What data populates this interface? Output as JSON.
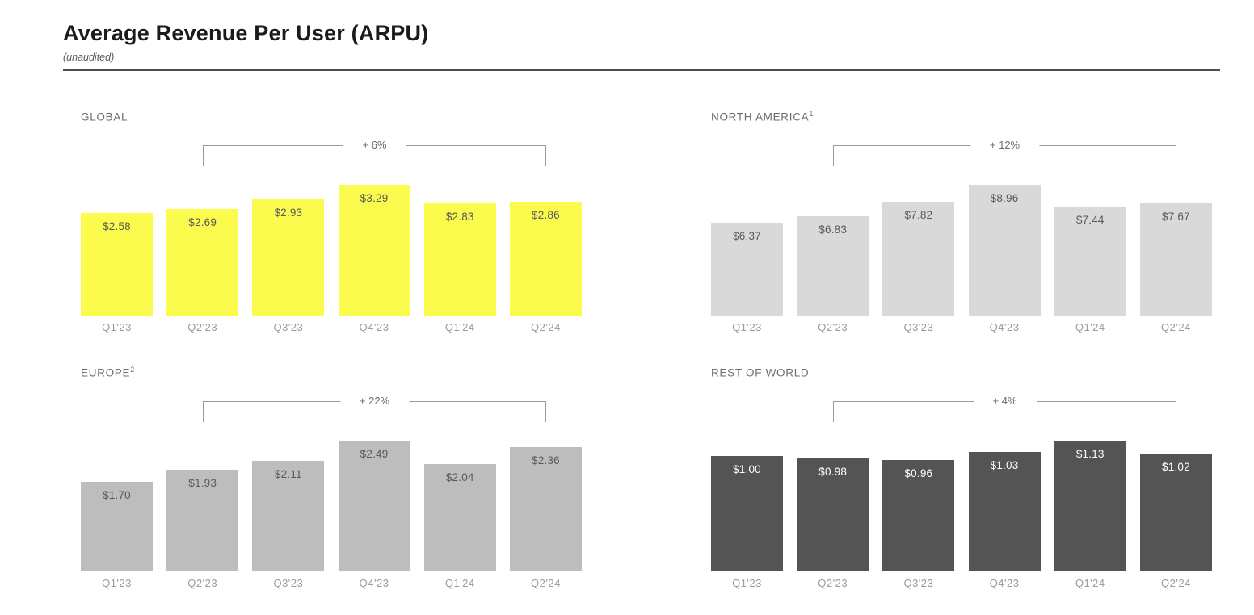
{
  "page": {
    "title": "Average Revenue Per User (ARPU)",
    "subtitle": "(unaudited)"
  },
  "colors": {
    "brand_yellow": "#FBFB4D",
    "light_gray_bar": "#D9D9D9",
    "medium_gray_bar": "#BDBDBD",
    "dark_gray_bar": "#545454",
    "value_label_dark": "#595959",
    "value_label_light": "#FFFFFF",
    "bracket_line": "#9A9A9A",
    "tick_label": "#9A9A9A"
  },
  "chart_data": [
    {
      "type": "bar",
      "title": "GLOBAL",
      "footnote": "",
      "growth_label": "+ 6%",
      "categories": [
        "Q1'23",
        "Q2'23",
        "Q3'23",
        "Q4'23",
        "Q1'24",
        "Q2'24"
      ],
      "values": [
        2.58,
        2.69,
        2.93,
        3.29,
        2.83,
        2.86
      ],
      "labels": [
        "$2.58",
        "$2.69",
        "$2.93",
        "$3.29",
        "$2.83",
        "$2.86"
      ],
      "xlabel": "",
      "ylabel": "",
      "ylim": [
        0,
        3.29
      ],
      "grid": false,
      "legend": false,
      "bar_color": "#FBFB4D",
      "label_color": "#595959"
    },
    {
      "type": "bar",
      "title": "NORTH AMERICA",
      "footnote": "1",
      "growth_label": "+ 12%",
      "categories": [
        "Q1'23",
        "Q2'23",
        "Q3'23",
        "Q4'23",
        "Q1'24",
        "Q2'24"
      ],
      "values": [
        6.37,
        6.83,
        7.82,
        8.96,
        7.44,
        7.67
      ],
      "labels": [
        "$6.37",
        "$6.83",
        "$7.82",
        "$8.96",
        "$7.44",
        "$7.67"
      ],
      "xlabel": "",
      "ylabel": "",
      "ylim": [
        0,
        8.96
      ],
      "grid": false,
      "legend": false,
      "bar_color": "#D9D9D9",
      "label_color": "#595959"
    },
    {
      "type": "bar",
      "title": "EUROPE",
      "footnote": "2",
      "growth_label": "+ 22%",
      "categories": [
        "Q1'23",
        "Q2'23",
        "Q3'23",
        "Q4'23",
        "Q1'24",
        "Q2'24"
      ],
      "values": [
        1.7,
        1.93,
        2.11,
        2.49,
        2.04,
        2.36
      ],
      "labels": [
        "$1.70",
        "$1.93",
        "$2.11",
        "$2.49",
        "$2.04",
        "$2.36"
      ],
      "xlabel": "",
      "ylabel": "",
      "ylim": [
        0,
        2.49
      ],
      "grid": false,
      "legend": false,
      "bar_color": "#BDBDBD",
      "label_color": "#595959"
    },
    {
      "type": "bar",
      "title": "REST OF WORLD",
      "footnote": "",
      "growth_label": "+ 4%",
      "categories": [
        "Q1'23",
        "Q2'23",
        "Q3'23",
        "Q4'23",
        "Q1'24",
        "Q2'24"
      ],
      "values": [
        1.0,
        0.98,
        0.96,
        1.03,
        1.13,
        1.02
      ],
      "labels": [
        "$1.00",
        "$0.98",
        "$0.96",
        "$1.03",
        "$1.13",
        "$1.02"
      ],
      "xlabel": "",
      "ylabel": "",
      "ylim": [
        0,
        1.13
      ],
      "grid": false,
      "legend": false,
      "bar_color": "#545454",
      "label_color": "#FFFFFF"
    }
  ]
}
